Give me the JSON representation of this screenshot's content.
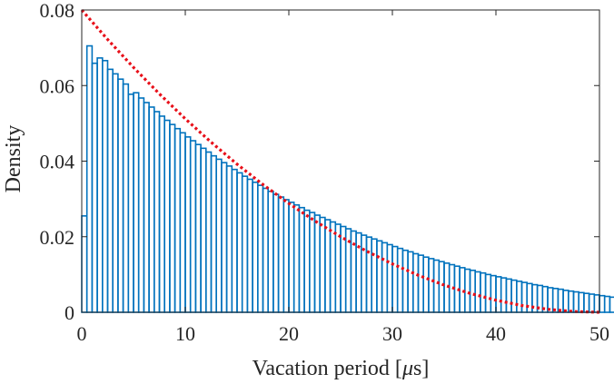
{
  "chart_data": {
    "type": "bar",
    "xlabel": "Vacation period [",
    "xlabel_mu": "μ",
    "xlabel_unit": "s]",
    "ylabel": "Density",
    "xlim": [
      0,
      50
    ],
    "ylim": [
      0,
      0.08
    ],
    "xticks": [
      0,
      10,
      20,
      30,
      40,
      50
    ],
    "yticks": [
      0,
      0.02,
      0.04,
      0.06,
      0.08
    ],
    "xtick_labels": [
      "0",
      "10",
      "20",
      "30",
      "40",
      "50"
    ],
    "ytick_labels": [
      "0",
      "0.02",
      "0.04",
      "0.06",
      "0.08"
    ],
    "grid": false,
    "bar_color": "#0072bd",
    "curve_color": "#e8101a",
    "series": [
      {
        "kind": "histogram",
        "bin_width": 0.5,
        "bin_start": 0,
        "values": [
          0.0255,
          0.0705,
          0.0659,
          0.0673,
          0.0666,
          0.0643,
          0.0631,
          0.0617,
          0.0604,
          0.0577,
          0.0581,
          0.0567,
          0.0555,
          0.0543,
          0.0531,
          0.0519,
          0.0508,
          0.0497,
          0.0486,
          0.0475,
          0.0464,
          0.0454,
          0.0444,
          0.0434,
          0.0424,
          0.0414,
          0.0405,
          0.0396,
          0.0387,
          0.0378,
          0.0369,
          0.036,
          0.0352,
          0.0344,
          0.0336,
          0.0328,
          0.032,
          0.0312,
          0.0305,
          0.0298,
          0.0291,
          0.0284,
          0.0277,
          0.027,
          0.0264,
          0.0257,
          0.0251,
          0.0245,
          0.0239,
          0.0233,
          0.0227,
          0.0221,
          0.0215,
          0.021,
          0.0204,
          0.0199,
          0.0194,
          0.0189,
          0.0184,
          0.0179,
          0.0174,
          0.0169,
          0.0164,
          0.016,
          0.0155,
          0.0151,
          0.0146,
          0.0142,
          0.0138,
          0.0134,
          0.013,
          0.0126,
          0.0122,
          0.0118,
          0.0114,
          0.0111,
          0.0107,
          0.0104,
          0.01,
          0.0097,
          0.0094,
          0.0091,
          0.0088,
          0.0085,
          0.0082,
          0.0079,
          0.0076,
          0.0073,
          0.0071,
          0.0068,
          0.0065,
          0.0063,
          0.0061,
          0.0058,
          0.0056,
          0.0054,
          0.0052,
          0.005,
          0.0048,
          0.0046,
          0.0044,
          0.0042,
          0.004,
          0.0038,
          0.0036,
          0.0035,
          0.0033,
          0.0031,
          0.003,
          0.0028,
          0.0027,
          0.0025,
          0.0024,
          0.0023,
          0.0021,
          0.002,
          0.0019,
          0.0018,
          0.0017,
          0.0016,
          0.0015,
          0.0014,
          0.0013,
          0.0012,
          0.0011,
          0.001,
          0.0009,
          0.0008,
          0.0008,
          0.0007,
          0.0006,
          0.0006,
          0.0005,
          0.0004,
          0.0004,
          0.0003,
          0.0003,
          0.0002,
          0.0002,
          0.0002,
          0.0001,
          0.0001,
          0.0001,
          0.0001,
          0.0,
          0.0,
          0.0,
          0.0,
          0.0,
          0.0
        ]
      },
      {
        "kind": "line",
        "style": "dotted",
        "x": [
          0,
          2.5,
          5,
          7.5,
          10,
          12.5,
          15,
          17.5,
          20,
          22.5,
          25,
          27.5,
          30,
          32.5,
          35,
          37.5,
          40,
          42.5,
          45,
          47.5,
          50
        ],
        "values": [
          0.08,
          0.0722,
          0.0648,
          0.0578,
          0.0512,
          0.045,
          0.0392,
          0.0338,
          0.0288,
          0.0242,
          0.02,
          0.0162,
          0.0128,
          0.0098,
          0.0072,
          0.005,
          0.0032,
          0.0018,
          0.0008,
          0.0002,
          0.0
        ]
      }
    ]
  }
}
